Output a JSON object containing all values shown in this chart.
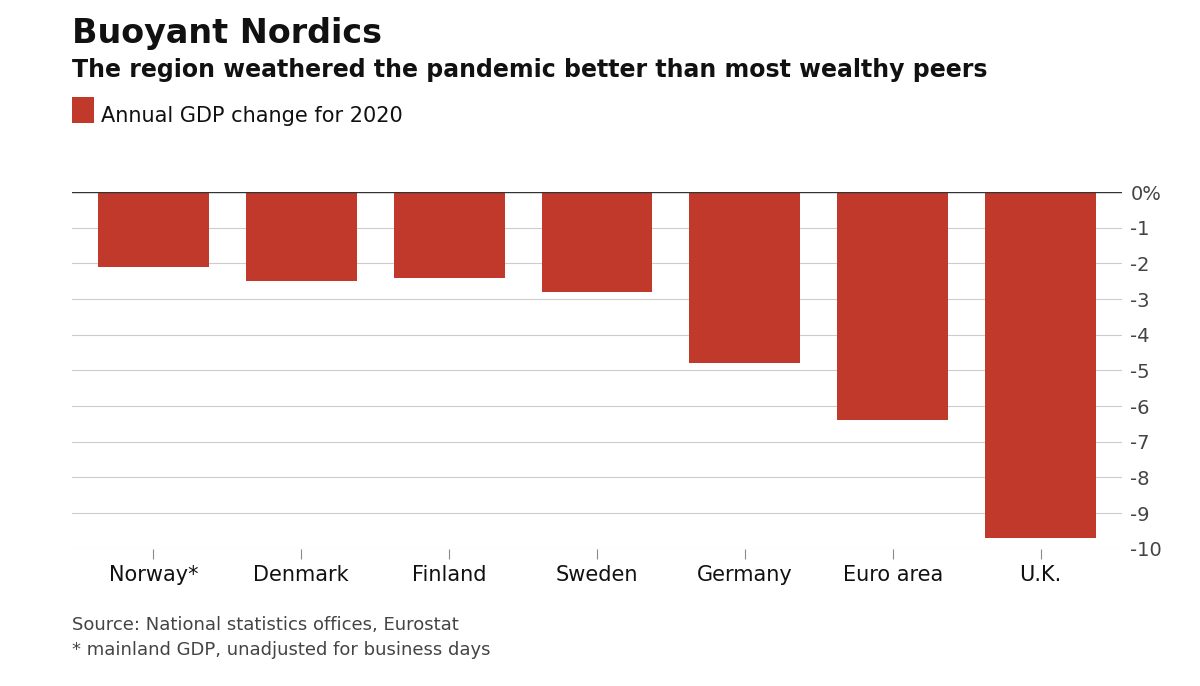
{
  "title": "Buoyant Nordics",
  "subtitle": "The region weathered the pandemic better than most wealthy peers",
  "legend_label": "Annual GDP change for 2020",
  "categories": [
    "Norway*",
    "Denmark",
    "Finland",
    "Sweden",
    "Germany",
    "Euro area",
    "U.K."
  ],
  "values": [
    -2.1,
    -2.5,
    -2.4,
    -2.8,
    -4.8,
    -6.4,
    -9.7
  ],
  "bar_color": "#c0392b",
  "background_color": "#ffffff",
  "ylim": [
    -10,
    0
  ],
  "yticks": [
    0,
    -1,
    -2,
    -3,
    -4,
    -5,
    -6,
    -7,
    -8,
    -9,
    -10
  ],
  "ytick_labels": [
    "0%",
    "-1",
    "-2",
    "-3",
    "-4",
    "-5",
    "-6",
    "-7",
    "-8",
    "-9",
    "-10"
  ],
  "source_text": "Source: National statistics offices, Eurostat\n* mainland GDP, unadjusted for business days",
  "title_fontsize": 24,
  "subtitle_fontsize": 17,
  "legend_fontsize": 15,
  "tick_fontsize": 14,
  "source_fontsize": 13,
  "xlabel_fontsize": 15,
  "bar_width": 0.75
}
